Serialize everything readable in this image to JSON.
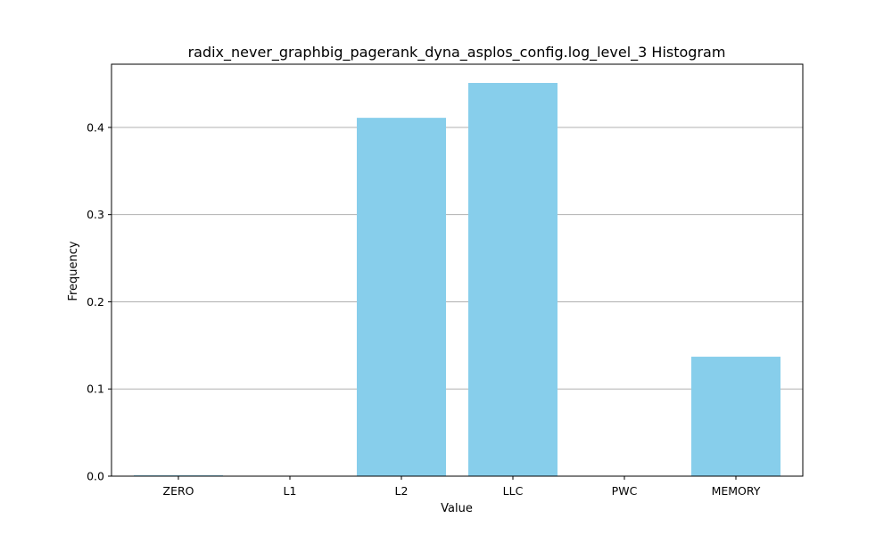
{
  "chart_data": {
    "type": "bar",
    "title": "radix_never_graphbig_pagerank_dyna_asplos_config.log_level_3 Histogram",
    "xlabel": "Value",
    "ylabel": "Frequency",
    "categories": [
      "ZERO",
      "L1",
      "L2",
      "LLC",
      "PWC",
      "MEMORY"
    ],
    "values": [
      0.001,
      0.0,
      0.411,
      0.451,
      0.0,
      0.137
    ],
    "ylim": [
      0,
      0.4725
    ],
    "yticks": [
      0.0,
      0.1,
      0.2,
      0.3,
      0.4
    ],
    "ytick_labels": [
      "0.0",
      "0.1",
      "0.2",
      "0.3",
      "0.4"
    ],
    "grid": "y",
    "legend": "none",
    "bar_color": "#87ceeb",
    "grid_color": "#b0b0b0"
  }
}
